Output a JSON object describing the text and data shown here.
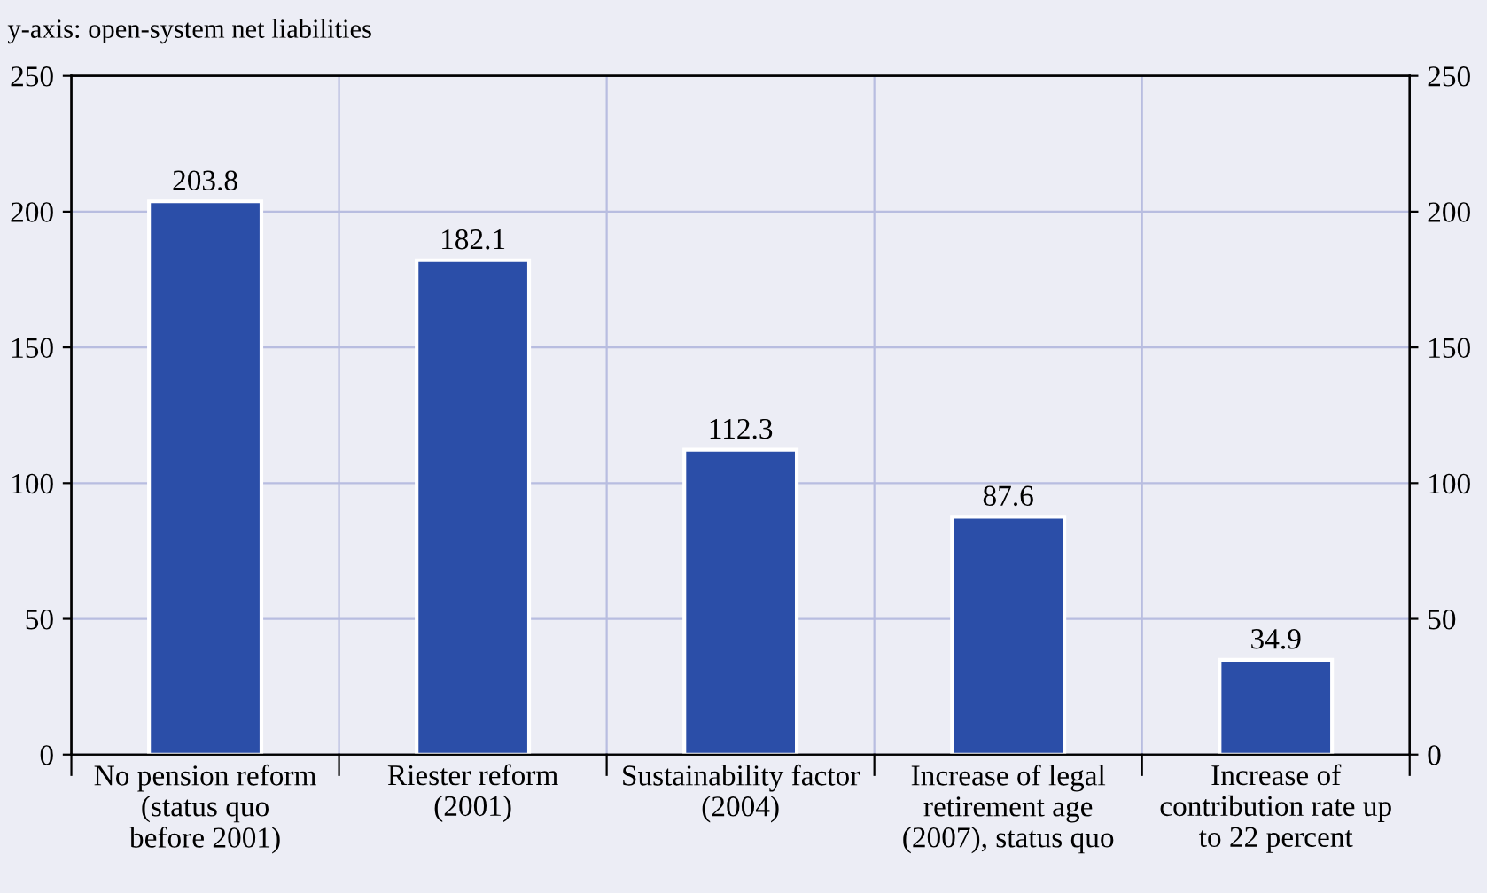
{
  "chart_data": {
    "type": "bar",
    "ylabel": "y-axis: open-system net liabilities",
    "categories": [
      "No pension reform\n(status quo\nbefore 2001)",
      "Riester reform\n(2001)",
      "Sustainability factor\n(2004)",
      "Increase of legal\nretirement age\n(2007), status quo",
      "Increase of\ncontribution rate up\nto 22 percent"
    ],
    "values": [
      203.8,
      182.1,
      112.3,
      87.6,
      34.9
    ],
    "color": "#2b4ea8",
    "ylim": [
      0,
      250
    ],
    "yticks": [
      0,
      50,
      100,
      150,
      200,
      250
    ],
    "y2lim": [
      0,
      250
    ],
    "y2ticks": [
      0,
      50,
      100,
      150,
      200,
      250
    ],
    "grid": true,
    "data_labels": true
  }
}
